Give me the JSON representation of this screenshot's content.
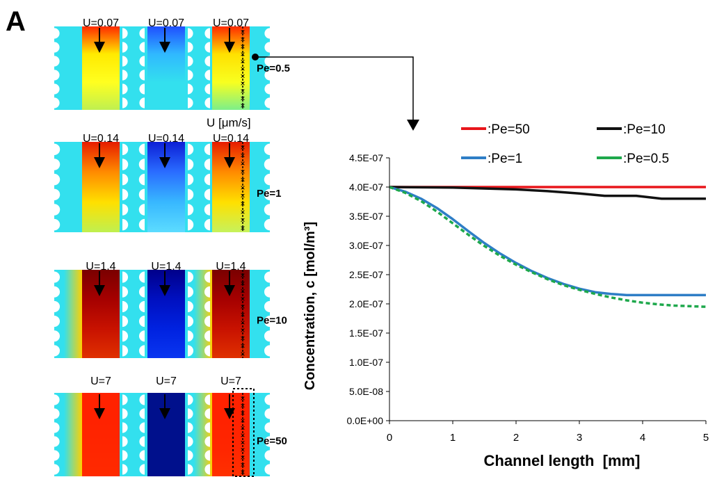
{
  "figure": {
    "panel_label": "A",
    "velocity_unit_label": "U [μm/s]"
  },
  "colors": {
    "pe50": "#e8161b",
    "pe10": "#111111",
    "pe1": "#2e7ec6",
    "pe05": "#1ea84c",
    "blue_bg": "#33e0ee",
    "arrow": "#000000"
  },
  "simulations": [
    {
      "pe_label": "Pe=0.5",
      "u_labels": [
        "U=0.07",
        "U=0.07",
        "U=0.07"
      ],
      "col1": [
        "#ff2a00",
        "#ffea00",
        "#ffff20",
        "#bff050"
      ],
      "col2": [
        "#1f4fff",
        "#30b8ff",
        "#33e0ee",
        "#33e0ee"
      ],
      "col3": [
        "#ff2a00",
        "#ffe000",
        "#f8ff20",
        "#7cef8a"
      ]
    },
    {
      "pe_label": "Pe=1",
      "u_labels": [
        "U=0.14",
        "U=0.14",
        "U=0.14"
      ],
      "col1": [
        "#e61c00",
        "#ff8a00",
        "#ffe000",
        "#bff050"
      ],
      "col2": [
        "#0c1fd6",
        "#2a6cff",
        "#38b8ff",
        "#5cdcff"
      ],
      "col3": [
        "#e61c00",
        "#ff8a00",
        "#ffe000",
        "#c6f25c"
      ]
    },
    {
      "pe_label": "Pe=10",
      "u_labels": [
        "U=1.4",
        "U=1.4",
        "U=1.4"
      ],
      "col1": [
        "#7a0000",
        "#a50000",
        "#c81200",
        "#e03000"
      ],
      "col2": [
        "#00008a",
        "#0010c0",
        "#0022e0",
        "#0a36f0"
      ],
      "col3": [
        "#7a0000",
        "#a50000",
        "#c81200",
        "#e03000"
      ]
    },
    {
      "pe_label": "Pe=50",
      "u_labels": [
        "U=7",
        "U=7",
        "U=7"
      ],
      "col1": [
        "#ff2200",
        "#ff2200",
        "#ff2600",
        "#ff2a00"
      ],
      "col2": [
        "#00108c",
        "#00108c",
        "#00108c",
        "#00108c"
      ],
      "col3": [
        "#ff2200",
        "#ff2200",
        "#ff2600",
        "#ff3000"
      ]
    }
  ],
  "chart_data": {
    "type": "line",
    "title": "",
    "xlabel": "Channel length  [mm]",
    "ylabel": "Concentration, c [mol/m³]",
    "xlim": [
      0,
      5
    ],
    "ylim": [
      0,
      4.5e-07
    ],
    "x_ticks": [
      "0",
      "1",
      "2",
      "3",
      "4",
      "5"
    ],
    "y_ticks": [
      "0.0E+00",
      "5.0E-08",
      "1.0E-07",
      "1.5E-07",
      "2.0E-07",
      "2.5E-07",
      "3.0E-07",
      "3.5E-07",
      "4.0E-07",
      "4.5E-07"
    ],
    "grid": false,
    "legend_position": "top",
    "series": [
      {
        "name": ":Pe=50",
        "color": "#e8161b",
        "dash": false,
        "x": [
          0,
          1,
          2,
          3,
          4,
          5
        ],
        "y": [
          4e-07,
          4e-07,
          4e-07,
          4e-07,
          4e-07,
          4e-07
        ]
      },
      {
        "name": ":Pe=10",
        "color": "#111111",
        "dash": false,
        "x": [
          0,
          1,
          2,
          2.5,
          3,
          3.4,
          3.9,
          4.3,
          5
        ],
        "y": [
          4e-07,
          3.99e-07,
          3.96e-07,
          3.93e-07,
          3.89e-07,
          3.85e-07,
          3.85e-07,
          3.8e-07,
          3.8e-07
        ]
      },
      {
        "name": ":Pe=1",
        "color": "#2e7ec6",
        "dash": false,
        "x": [
          0,
          0.25,
          0.5,
          0.75,
          1,
          1.25,
          1.5,
          1.75,
          2,
          2.25,
          2.5,
          2.75,
          3,
          3.25,
          3.5,
          3.75,
          4,
          4.25,
          4.5,
          5
        ],
        "y": [
          4e-07,
          3.92e-07,
          3.8e-07,
          3.64e-07,
          3.45e-07,
          3.24e-07,
          3.04e-07,
          2.86e-07,
          2.7e-07,
          2.56e-07,
          2.44e-07,
          2.34e-07,
          2.26e-07,
          2.2e-07,
          2.17e-07,
          2.15e-07,
          2.15e-07,
          2.15e-07,
          2.15e-07,
          2.15e-07
        ]
      },
      {
        "name": ":Pe=0.5",
        "color": "#1ea84c",
        "dash": true,
        "x": [
          0,
          0.25,
          0.5,
          0.75,
          1,
          1.25,
          1.5,
          1.75,
          2,
          2.25,
          2.5,
          2.75,
          3,
          3.25,
          3.5,
          3.75,
          4,
          4.25,
          4.5,
          5
        ],
        "y": [
          4e-07,
          3.9e-07,
          3.76e-07,
          3.58e-07,
          3.38e-07,
          3.18e-07,
          2.99e-07,
          2.82e-07,
          2.67e-07,
          2.54e-07,
          2.42e-07,
          2.32e-07,
          2.24e-07,
          2.17e-07,
          2.11e-07,
          2.06e-07,
          2.02e-07,
          1.99e-07,
          1.97e-07,
          1.95e-07
        ]
      }
    ]
  }
}
